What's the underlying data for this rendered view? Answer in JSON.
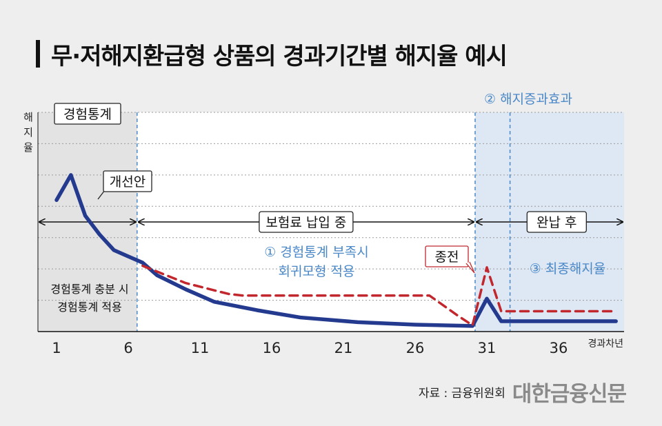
{
  "title": "무·저해지환급형 상품의 경과기간별 해지율 예시",
  "chart_data": {
    "type": "line",
    "ylabel": "해지율",
    "xlabel": "경과차년",
    "x_ticks": [
      1,
      6,
      11,
      16,
      21,
      26,
      31,
      36
    ],
    "xlim": [
      0,
      40
    ],
    "ylim": [
      0,
      7
    ],
    "grid": true,
    "series": [
      {
        "name": "개선안",
        "color": "#233a8e",
        "style": "solid",
        "x": [
          1,
          2,
          3,
          4,
          5,
          6,
          7,
          8,
          10,
          12,
          15,
          18,
          22,
          26,
          30,
          31,
          32,
          33,
          40
        ],
        "y": [
          4.2,
          5.0,
          3.7,
          3.1,
          2.6,
          2.4,
          2.2,
          1.8,
          1.35,
          0.95,
          0.68,
          0.45,
          0.3,
          0.22,
          0.18,
          1.05,
          0.33,
          0.33,
          0.33
        ]
      },
      {
        "name": "",
        "color": "#c1272d",
        "style": "dashed",
        "x": [
          7,
          10,
          13,
          14,
          27,
          29,
          30,
          31,
          32,
          40
        ],
        "y": [
          2.1,
          1.55,
          1.2,
          1.15,
          1.15,
          0.5,
          0.2,
          2.05,
          0.65,
          0.65
        ]
      }
    ],
    "annotations": {
      "experience_box": "경험통계",
      "improvement": "개선안",
      "paying_range": "보험료 납입 중",
      "paid_up_range": "완납 후",
      "insufficient": [
        "① 경험통계 부족시",
        "회귀모형 적용"
      ],
      "surrender_effect": "② 해지증과효과",
      "final_rate": "③ 최종해지율",
      "end_label": "종전",
      "sufficient": [
        "경험통계 충분 시",
        "경험통계 적용"
      ]
    },
    "colors": {
      "accent_blue": "#4a88c8",
      "shade_gray": "#e3e3e3",
      "shade_blue": "#dde8f4"
    }
  },
  "source": {
    "label": "자료 : 금융위원회",
    "logo": "대한금융신문"
  }
}
